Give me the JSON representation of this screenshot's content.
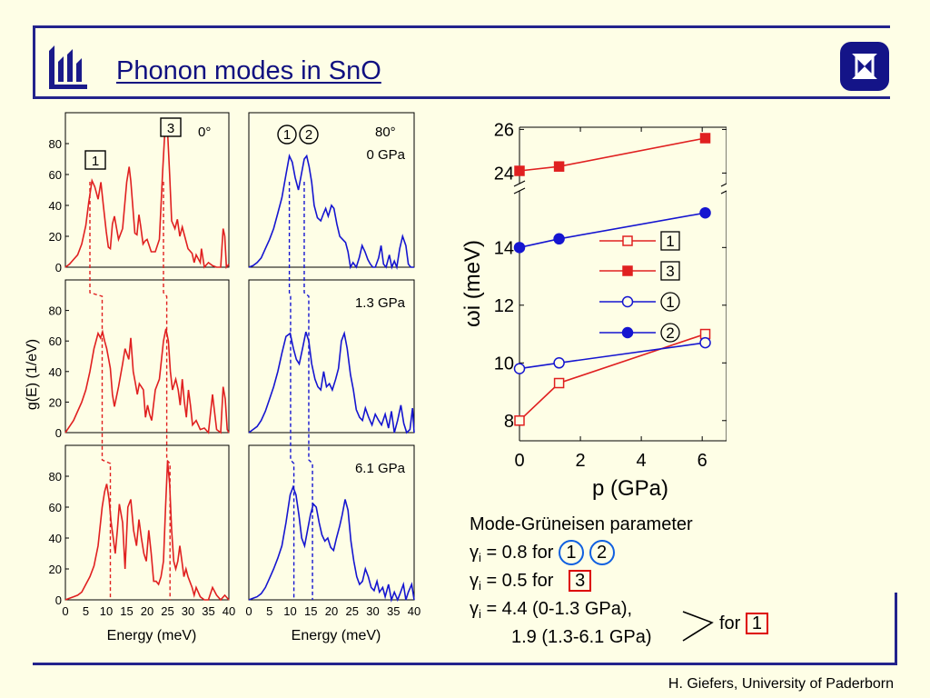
{
  "slide": {
    "title": "Phonon modes in SnO",
    "footer": "H. Giefers, University of Paderborn",
    "colors": {
      "frame": "#23238c",
      "background": "#fefee6",
      "red": "#e02020",
      "blue": "#1515d0"
    },
    "logo_left_icon": "university-logo-icon",
    "logo_right_icon": "square-x-logo-icon"
  },
  "gruneisen": {
    "heading": "Mode-Grüneisen parameter",
    "symbol": "γ",
    "sub": "i",
    "line1_value": " = 0.8 for ",
    "line1_mode_a": "1",
    "line1_mode_b": "2",
    "line2_value": " = 0.5 for ",
    "line2_mode": "3",
    "line3_value": " = 4.4 (0-1.3 GPa),",
    "line4_value": "1.9 (1.3-6.1 GPa)",
    "for_text": "for",
    "for_mode": "1"
  },
  "chart_data": [
    {
      "type": "line",
      "panel": "dos-0deg",
      "orientation_label": "0°",
      "ylabel": "g(E) (1/eV)",
      "xlabel": "Energy (meV)",
      "xlim": [
        0,
        40
      ],
      "ylim": [
        0,
        100
      ],
      "xticks": [
        "0",
        "5",
        "10",
        "15",
        "20",
        "25",
        "30",
        "35",
        "40"
      ],
      "yticks": [
        "0",
        "20",
        "40",
        "60",
        "80"
      ],
      "color": "#e02020",
      "rows": [
        {
          "pressure_label": "",
          "x": [
            0,
            1,
            2,
            3,
            4,
            5,
            5.7,
            6.5,
            7.2,
            8,
            8.7,
            9.3,
            10,
            10.5,
            11,
            11.5,
            12,
            13,
            14,
            15,
            15.6,
            16,
            17,
            17.5,
            18,
            18.4,
            19,
            19.5,
            20,
            21,
            22,
            23,
            23.8,
            24.4,
            25,
            25.5,
            26,
            26.8,
            27.4,
            28,
            28.6,
            29.2,
            30,
            31,
            31.5,
            32,
            33,
            33.3,
            34,
            35,
            36,
            37,
            38,
            38.6,
            39,
            39.4,
            40
          ],
          "y": [
            0,
            2,
            5,
            8,
            15,
            27,
            42,
            56,
            52,
            44,
            55,
            40,
            23,
            13,
            12,
            28,
            33,
            18,
            25,
            55,
            65,
            56,
            22,
            21,
            34,
            27,
            15,
            17,
            18,
            10,
            10,
            18,
            62,
            91,
            88,
            60,
            30,
            25,
            31,
            20,
            26,
            20,
            12,
            9,
            3,
            8,
            3,
            12,
            0,
            3,
            1,
            0,
            0,
            25,
            20,
            0,
            2
          ]
        },
        {
          "pressure_label": "",
          "x": [
            0,
            1,
            2,
            3,
            4,
            5,
            6,
            7,
            8,
            8.6,
            9.1,
            9.6,
            10.1,
            10.6,
            11,
            11.5,
            12,
            13,
            14,
            14.6,
            15.5,
            16,
            16.6,
            17.1,
            17.6,
            18.1,
            18.6,
            19.1,
            19.6,
            20.1,
            20.6,
            21.1,
            22,
            23,
            24,
            24.6,
            25.2,
            25.7,
            26.2,
            27,
            27.6,
            28.1,
            28.6,
            29.1,
            29.6,
            30.1,
            30.6,
            31.1,
            32,
            33,
            34,
            35,
            36,
            37,
            38,
            38.6,
            39.1,
            39.6,
            40
          ],
          "y": [
            0,
            4,
            8,
            14,
            20,
            28,
            40,
            55,
            65,
            62,
            66,
            60,
            55,
            48,
            42,
            25,
            17,
            30,
            45,
            55,
            48,
            62,
            40,
            33,
            25,
            32,
            30,
            28,
            10,
            18,
            12,
            8,
            28,
            35,
            60,
            68,
            60,
            40,
            28,
            35,
            28,
            18,
            35,
            20,
            10,
            28,
            18,
            5,
            8,
            2,
            3,
            0,
            25,
            2,
            0,
            30,
            22,
            2,
            0
          ]
        },
        {
          "pressure_label": "",
          "x": [
            0,
            1,
            2,
            3,
            4,
            5,
            6,
            7,
            8,
            9,
            9.6,
            10.1,
            10.7,
            11.2,
            11.7,
            12.2,
            12.7,
            13.2,
            14,
            14.6,
            15.3,
            16,
            16.7,
            17.4,
            18,
            18.6,
            19.2,
            19.8,
            20.4,
            21,
            21.6,
            22.2,
            22.8,
            23.4,
            24,
            24.5,
            25,
            25.5,
            26,
            26.5,
            27,
            27.5,
            28,
            28.5,
            29,
            29.5,
            30,
            31,
            31.5,
            32,
            33,
            34,
            35,
            36,
            37,
            38,
            39,
            40
          ],
          "y": [
            0,
            1,
            2,
            3,
            5,
            10,
            15,
            22,
            35,
            60,
            70,
            75,
            65,
            50,
            40,
            30,
            45,
            62,
            50,
            20,
            60,
            65,
            45,
            35,
            52,
            40,
            30,
            25,
            45,
            30,
            12,
            12,
            10,
            15,
            25,
            60,
            90,
            75,
            45,
            25,
            20,
            25,
            35,
            25,
            15,
            20,
            15,
            8,
            3,
            8,
            2,
            0,
            0,
            8,
            3,
            0,
            3,
            0
          ]
        }
      ]
    },
    {
      "type": "line",
      "panel": "dos-80deg",
      "orientation_label": "80°",
      "xlabel": "Energy (meV)",
      "xlim": [
        0,
        40
      ],
      "ylim": [
        0,
        100
      ],
      "xticks": [
        "0",
        "5",
        "10",
        "15",
        "20",
        "25",
        "30",
        "35",
        "40"
      ],
      "color": "#1515d0",
      "rows": [
        {
          "pressure_label": "0 GPa",
          "x": [
            0,
            1,
            2,
            3,
            4,
            5,
            6,
            7,
            8,
            9,
            9.8,
            10.5,
            11.2,
            12,
            12.7,
            13.4,
            14,
            14.6,
            15.2,
            15.8,
            16.6,
            17.4,
            18.1,
            18.6,
            19.2,
            20,
            20.6,
            21.3,
            22,
            22.7,
            23.4,
            24,
            24.6,
            25.2,
            26,
            26.7,
            27.4,
            28.1,
            28.8,
            29.4,
            30,
            30.6,
            31.4,
            32,
            32.6,
            33.2,
            34,
            34.6,
            35.2,
            35.8,
            36.5,
            37.2,
            38,
            38.6,
            39.2,
            40
          ],
          "y": [
            0,
            1,
            3,
            6,
            12,
            18,
            25,
            35,
            45,
            60,
            72,
            68,
            58,
            50,
            60,
            70,
            72,
            65,
            55,
            40,
            32,
            30,
            35,
            38,
            33,
            40,
            38,
            28,
            20,
            18,
            16,
            10,
            0,
            3,
            0,
            6,
            14,
            10,
            5,
            2,
            0,
            0,
            6,
            14,
            2,
            0,
            8,
            0,
            4,
            0,
            12,
            20,
            14,
            2,
            0,
            0
          ]
        },
        {
          "pressure_label": "1.3 GPa",
          "x": [
            0,
            1,
            2,
            3,
            4,
            5,
            6,
            7,
            8,
            9,
            10,
            10.8,
            11.5,
            12.2,
            13,
            13.8,
            14.5,
            15.2,
            16,
            16.7,
            17.4,
            18.1,
            18.8,
            19.5,
            20.2,
            21,
            21.7,
            22.4,
            23.1,
            23.8,
            24.6,
            25.3,
            26,
            26.8,
            27.5,
            28.2,
            29,
            29.8,
            30.6,
            31.4,
            32.1,
            33,
            33.8,
            34.5,
            35.2,
            36,
            36.8,
            37.5,
            38.2,
            39,
            39.6,
            40
          ],
          "y": [
            0,
            2,
            4,
            8,
            14,
            22,
            30,
            40,
            52,
            63,
            65,
            55,
            48,
            45,
            55,
            66,
            60,
            45,
            35,
            30,
            28,
            40,
            30,
            32,
            28,
            35,
            42,
            60,
            65,
            55,
            38,
            28,
            15,
            10,
            8,
            16,
            10,
            5,
            12,
            8,
            5,
            12,
            3,
            14,
            0,
            8,
            18,
            6,
            0,
            2,
            16,
            0
          ]
        },
        {
          "pressure_label": "6.1 GPa",
          "x": [
            0,
            1,
            2,
            3,
            4,
            5,
            6,
            7,
            8,
            9,
            10,
            10.7,
            11.4,
            12.1,
            12.8,
            13.5,
            14.2,
            14.9,
            15.6,
            16.3,
            17,
            17.7,
            18.4,
            19.1,
            19.8,
            20.5,
            21.2,
            22,
            22.6,
            23.3,
            24,
            24.7,
            25.4,
            26.1,
            26.8,
            27.5,
            28.2,
            28.9,
            29.6,
            30.3,
            31,
            31.6,
            32.4,
            33,
            33.8,
            34.5,
            35.2,
            36,
            36.6,
            37.4,
            38,
            38.6,
            39.4,
            40
          ],
          "y": [
            0,
            1,
            2,
            4,
            8,
            14,
            20,
            27,
            35,
            50,
            68,
            73,
            68,
            55,
            40,
            35,
            45,
            55,
            62,
            60,
            50,
            42,
            38,
            40,
            34,
            32,
            40,
            48,
            55,
            65,
            58,
            38,
            25,
            15,
            10,
            12,
            20,
            15,
            8,
            6,
            12,
            5,
            8,
            2,
            10,
            0,
            5,
            0,
            4,
            10,
            0,
            5,
            10,
            0
          ]
        }
      ]
    },
    {
      "type": "scatter",
      "panel": "mode-frequencies",
      "xlabel": "p (GPa)",
      "ylabel": "ωi (meV)",
      "xlim": [
        0,
        6.8
      ],
      "xticks": [
        "0",
        "2",
        "4",
        "6"
      ],
      "yticks_upper": [
        "24",
        "26"
      ],
      "yticks_lower": [
        "8",
        "10",
        "12",
        "14"
      ],
      "ylim_upper": [
        23.6,
        26.1
      ],
      "ylim_lower": [
        7.3,
        15.9
      ],
      "axis_break": true,
      "legend_position": "right",
      "series": [
        {
          "name": "1",
          "marker": "open-square",
          "color": "#e02020",
          "x": [
            0,
            1.3,
            6.1
          ],
          "y": [
            8.0,
            9.3,
            11.0
          ]
        },
        {
          "name": "3",
          "marker": "filled-square",
          "color": "#e02020",
          "x": [
            0,
            1.3,
            6.1
          ],
          "y": [
            24.1,
            24.3,
            25.6
          ]
        },
        {
          "name": "1",
          "marker": "open-circle",
          "color": "#1515d0",
          "x": [
            0,
            1.3,
            6.1
          ],
          "y": [
            9.8,
            10.0,
            10.7
          ]
        },
        {
          "name": "2",
          "marker": "filled-circle",
          "color": "#1515d0",
          "x": [
            0,
            1.3,
            6.1
          ],
          "y": [
            14.0,
            14.3,
            15.2
          ]
        }
      ]
    }
  ]
}
